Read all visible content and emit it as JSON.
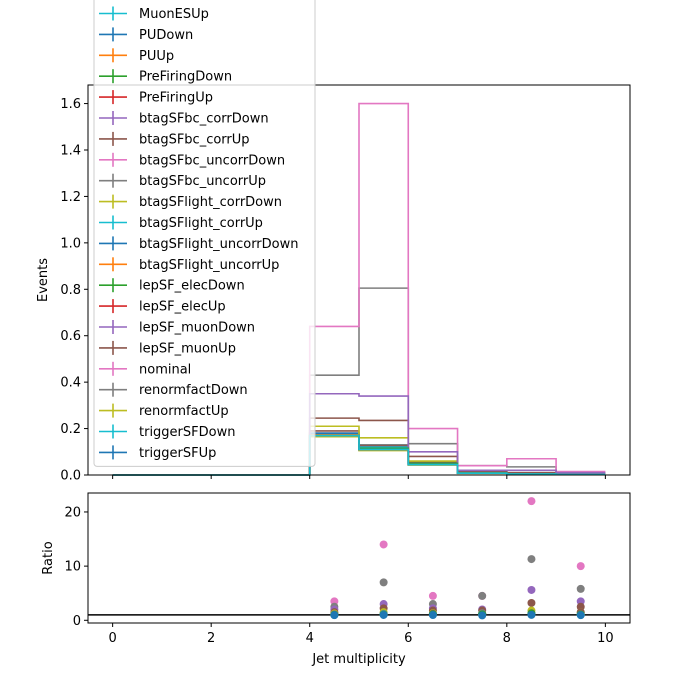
{
  "chart_data": [
    {
      "type": "step",
      "title": "",
      "xlabel": "",
      "ylabel": "Events",
      "xlim": [
        -0.5,
        10.5
      ],
      "ylim": [
        0,
        1.68
      ],
      "yticks": [
        0.0,
        0.2,
        0.4,
        0.6,
        0.8,
        1.0,
        1.2,
        1.4,
        1.6
      ],
      "ytick_labels": [
        "0.0",
        "0.2",
        "0.4",
        "0.6",
        "0.8",
        "1.0",
        "1.2",
        "1.4",
        "1.6"
      ],
      "xticks": [
        0,
        2,
        4,
        6,
        8,
        10
      ],
      "bin_edges": [
        0,
        1,
        2,
        3,
        4,
        5,
        6,
        7,
        8,
        9,
        10
      ],
      "grid": false,
      "legend_position": "upper-left",
      "series": [
        {
          "name": "MuonESUp",
          "color": "#17becf",
          "values": [
            0,
            0,
            0,
            0,
            0.17,
            0.11,
            0.045,
            0.008,
            0.004,
            0.002
          ]
        },
        {
          "name": "PUDown",
          "color": "#1f77b4",
          "values": [
            0,
            0,
            0,
            0,
            0.17,
            0.11,
            0.045,
            0.008,
            0.004,
            0.002
          ]
        },
        {
          "name": "PUUp",
          "color": "#ff7f0e",
          "values": [
            0,
            0,
            0,
            0,
            0.17,
            0.11,
            0.045,
            0.008,
            0.004,
            0.002
          ]
        },
        {
          "name": "PreFiringDown",
          "color": "#2ca02c",
          "values": [
            0,
            0,
            0,
            0,
            0.17,
            0.115,
            0.05,
            0.009,
            0.005,
            0.002
          ]
        },
        {
          "name": "PreFiringUp",
          "color": "#d62728",
          "values": [
            0,
            0,
            0,
            0,
            0.17,
            0.11,
            0.045,
            0.008,
            0.004,
            0.002
          ]
        },
        {
          "name": "btagSFbc_corrDown",
          "color": "#9467bd",
          "values": [
            0,
            0,
            0,
            0,
            0.35,
            0.34,
            0.1,
            0.02,
            0.02,
            0.01
          ]
        },
        {
          "name": "btagSFbc_corrUp",
          "color": "#8c564b",
          "values": [
            0,
            0,
            0,
            0,
            0.245,
            0.235,
            0.08,
            0.015,
            0.01,
            0.005
          ]
        },
        {
          "name": "btagSFbc_uncorrDown",
          "color": "#e377c2",
          "values": [
            0,
            0,
            0,
            0,
            0.64,
            1.6,
            0.2,
            0.04,
            0.07,
            0.015
          ]
        },
        {
          "name": "btagSFbc_uncorrUp",
          "color": "#7f7f7f",
          "values": [
            0,
            0,
            0,
            0,
            0.43,
            0.805,
            0.135,
            0.04,
            0.035,
            0.01
          ]
        },
        {
          "name": "btagSFlight_corrDown",
          "color": "#bcbd22",
          "values": [
            0,
            0,
            0,
            0,
            0.21,
            0.16,
            0.06,
            0.01,
            0.006,
            0.003
          ]
        },
        {
          "name": "btagSFlight_corrUp",
          "color": "#17becf",
          "values": [
            0,
            0,
            0,
            0,
            0.17,
            0.12,
            0.05,
            0.009,
            0.005,
            0.002
          ]
        },
        {
          "name": "btagSFlight_uncorrDown",
          "color": "#1f77b4",
          "values": [
            0,
            0,
            0,
            0,
            0.18,
            0.12,
            0.05,
            0.009,
            0.005,
            0.002
          ]
        },
        {
          "name": "btagSFlight_uncorrUp",
          "color": "#ff7f0e",
          "values": [
            0,
            0,
            0,
            0,
            0.175,
            0.115,
            0.048,
            0.008,
            0.004,
            0.002
          ]
        },
        {
          "name": "lepSF_elecDown",
          "color": "#2ca02c",
          "values": [
            0,
            0,
            0,
            0,
            0.17,
            0.11,
            0.045,
            0.008,
            0.004,
            0.002
          ]
        },
        {
          "name": "lepSF_elecUp",
          "color": "#d62728",
          "values": [
            0,
            0,
            0,
            0,
            0.17,
            0.11,
            0.045,
            0.008,
            0.004,
            0.002
          ]
        },
        {
          "name": "lepSF_muonDown",
          "color": "#9467bd",
          "values": [
            0,
            0,
            0,
            0,
            0.18,
            0.12,
            0.05,
            0.009,
            0.005,
            0.002
          ]
        },
        {
          "name": "lepSF_muonUp",
          "color": "#8c564b",
          "values": [
            0,
            0,
            0,
            0,
            0.19,
            0.125,
            0.055,
            0.01,
            0.005,
            0.003
          ]
        },
        {
          "name": "nominal",
          "color": "#e377c2",
          "values": [
            0,
            0,
            0,
            0,
            0.17,
            0.11,
            0.045,
            0.008,
            0.004,
            0.002
          ]
        },
        {
          "name": "renormfactDown",
          "color": "#7f7f7f",
          "values": [
            0,
            0,
            0,
            0,
            0.18,
            0.13,
            0.05,
            0.01,
            0.005,
            0.002
          ]
        },
        {
          "name": "renormfactUp",
          "color": "#bcbd22",
          "values": [
            0,
            0,
            0,
            0,
            0.165,
            0.105,
            0.043,
            0.007,
            0.004,
            0.002
          ]
        },
        {
          "name": "triggerSFDown",
          "color": "#17becf",
          "values": [
            0,
            0,
            0,
            0,
            0.17,
            0.11,
            0.045,
            0.008,
            0.004,
            0.002
          ]
        },
        {
          "name": "triggerSFUp",
          "color": "#1f77b4",
          "values": [
            0,
            0,
            0,
            0,
            0.165,
            0.108,
            0.044,
            0.008,
            0.004,
            0.002
          ]
        }
      ]
    },
    {
      "type": "scatter",
      "title": "",
      "xlabel": "Jet multiplicity",
      "ylabel": "Ratio",
      "xlim": [
        -0.5,
        10.5
      ],
      "ylim": [
        -0.5,
        23.5
      ],
      "yticks": [
        0,
        10,
        20
      ],
      "ytick_labels": [
        "0",
        "10",
        "20"
      ],
      "xticks": [
        0,
        2,
        4,
        6,
        8,
        10
      ],
      "xtick_labels": [
        "0",
        "2",
        "4",
        "6",
        "8",
        "10"
      ],
      "reference_line": 1,
      "x": [
        4.5,
        5.5,
        6.5,
        7.5,
        8.5,
        9.5
      ],
      "series": [
        {
          "name": "btagSFbc_uncorrDown",
          "color": "#e377c2",
          "values": [
            3.5,
            14.0,
            4.5,
            4.5,
            22.0,
            10.0
          ]
        },
        {
          "name": "btagSFbc_uncorrUp",
          "color": "#7f7f7f",
          "values": [
            2.5,
            7.0,
            3.0,
            4.5,
            11.3,
            5.8
          ]
        },
        {
          "name": "btagSFbc_corrDown",
          "color": "#9467bd",
          "values": [
            2.0,
            3.0,
            2.2,
            2.0,
            5.6,
            3.5
          ]
        },
        {
          "name": "btagSFbc_corrUp",
          "color": "#8c564b",
          "values": [
            1.5,
            2.2,
            1.8,
            1.8,
            3.2,
            2.5
          ]
        },
        {
          "name": "btagSFlight_corrDown",
          "color": "#bcbd22",
          "values": [
            1.25,
            1.5,
            1.3,
            1.2,
            1.8,
            1.5
          ]
        },
        {
          "name": "lepSF_muonUp",
          "color": "#8c564b",
          "values": [
            1.1,
            1.15,
            1.2,
            1.25,
            1.3,
            1.5
          ]
        },
        {
          "name": "renormfactDown",
          "color": "#7f7f7f",
          "values": [
            1.05,
            1.2,
            1.1,
            1.3,
            1.2,
            1.1
          ]
        },
        {
          "name": "btagSFlight_corrUp",
          "color": "#17becf",
          "values": [
            1.0,
            1.1,
            1.1,
            1.1,
            1.2,
            1.0
          ]
        },
        {
          "name": "PreFiringDown",
          "color": "#2ca02c",
          "values": [
            1.0,
            1.05,
            1.1,
            1.1,
            1.25,
            1.05
          ]
        },
        {
          "name": "triggerSFUp",
          "color": "#1f77b4",
          "values": [
            0.95,
            0.98,
            0.97,
            0.9,
            1.0,
            0.95
          ]
        }
      ]
    }
  ]
}
